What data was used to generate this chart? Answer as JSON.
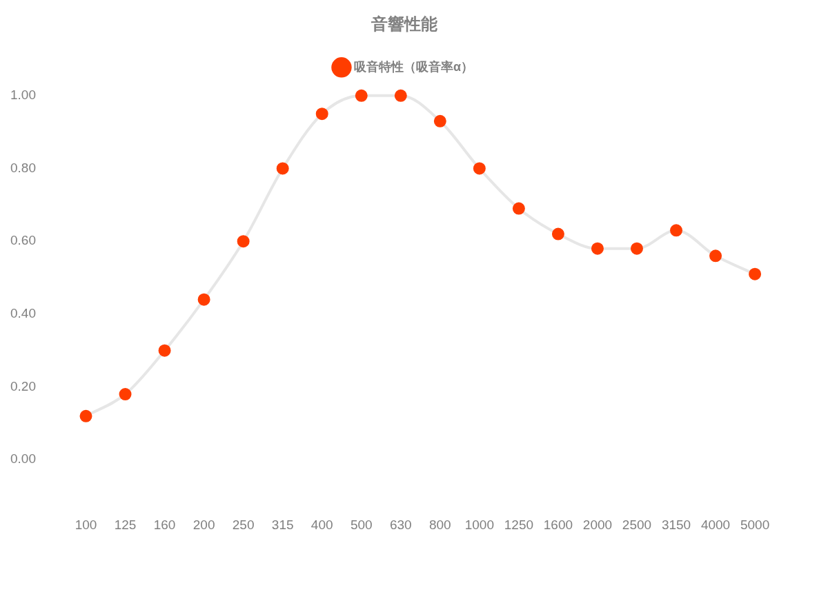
{
  "chart_data": {
    "type": "line",
    "title": "音響性能",
    "categories": [
      "100",
      "125",
      "160",
      "200",
      "250",
      "315",
      "400",
      "500",
      "630",
      "800",
      "1000",
      "1250",
      "1600",
      "2000",
      "2500",
      "3150",
      "4000",
      "5000"
    ],
    "series": [
      {
        "name": "吸音特性（吸音率α）",
        "color": "#ff3d00",
        "values": [
          0.12,
          0.18,
          0.3,
          0.44,
          0.6,
          0.8,
          0.95,
          1.0,
          1.0,
          0.93,
          0.8,
          0.69,
          0.62,
          0.58,
          0.58,
          0.63,
          0.56,
          0.51
        ]
      }
    ],
    "ylim": [
      0,
      1
    ],
    "yticks": [
      {
        "value": 0,
        "label": "0.00"
      },
      {
        "value": 0.2,
        "label": "0.20"
      },
      {
        "value": 0.4,
        "label": "0.40"
      },
      {
        "value": 0.6,
        "label": "0.60"
      },
      {
        "value": 0.8,
        "label": "0.80"
      },
      {
        "value": 1,
        "label": "1.00"
      }
    ],
    "grid": false,
    "legend": "top",
    "marker": "circle",
    "line_style": "solid"
  }
}
